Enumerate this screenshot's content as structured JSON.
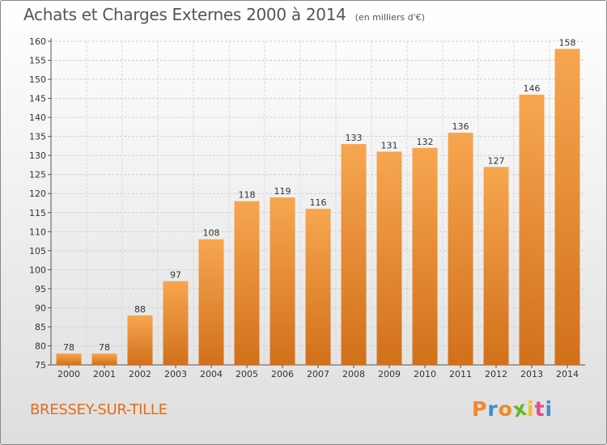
{
  "header": {
    "title": "Achats et Charges Externes 2000 à 2014",
    "subtitle": "(en milliers d'€)"
  },
  "footer": {
    "town": "BRESSEY-SUR-TILLE",
    "brand": "Proxiti"
  },
  "colors": {
    "bar_light": "#f7a650",
    "bar_dark": "#d2701b",
    "town_text": "#e36c1c",
    "brand_letters": [
      "#f08a24",
      "#3a8fd1",
      "#f08a24",
      "#6ab52e",
      "#f3c21b",
      "#e24b8b",
      "#3a8fd1"
    ]
  },
  "chart_data": {
    "type": "bar",
    "categories": [
      "2000",
      "2001",
      "2002",
      "2003",
      "2004",
      "2005",
      "2006",
      "2007",
      "2008",
      "2009",
      "2010",
      "2011",
      "2012",
      "2013",
      "2014"
    ],
    "values": [
      78,
      78,
      88,
      97,
      108,
      118,
      119,
      116,
      133,
      131,
      132,
      136,
      127,
      146,
      158
    ],
    "ylim": [
      75,
      160
    ],
    "yticks": [
      75,
      80,
      85,
      90,
      95,
      100,
      105,
      110,
      115,
      120,
      125,
      130,
      135,
      140,
      145,
      150,
      155,
      160
    ],
    "grid": true
  }
}
